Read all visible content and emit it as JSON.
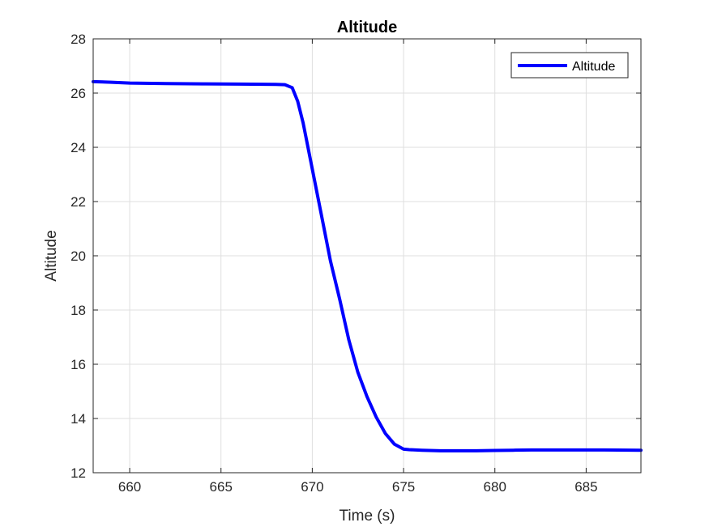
{
  "chart_data": {
    "type": "line",
    "title": "Altitude",
    "xlabel": "Time (s)",
    "ylabel": "Altitude",
    "xlim": [
      658,
      688
    ],
    "ylim": [
      12,
      28
    ],
    "xticks": [
      660,
      665,
      670,
      675,
      680,
      685
    ],
    "yticks": [
      12,
      14,
      16,
      18,
      20,
      22,
      24,
      26,
      28
    ],
    "grid": true,
    "legend": {
      "position": "top-right",
      "entries": [
        "Altitude"
      ]
    },
    "series": [
      {
        "name": "Altitude",
        "color": "#0000ff",
        "x": [
          658,
          659,
          660,
          662,
          664,
          666,
          668,
          668.5,
          668.9,
          669.2,
          669.5,
          670.0,
          670.5,
          671.0,
          671.5,
          672.0,
          672.5,
          673.0,
          673.5,
          674.0,
          674.5,
          675.0,
          675.3,
          676,
          677,
          678,
          679,
          680,
          681,
          682,
          684,
          686,
          688
        ],
        "y": [
          26.42,
          26.4,
          26.37,
          26.35,
          26.34,
          26.33,
          26.32,
          26.31,
          26.2,
          25.7,
          24.9,
          23.2,
          21.5,
          19.8,
          18.4,
          16.9,
          15.7,
          14.8,
          14.05,
          13.45,
          13.05,
          12.87,
          12.85,
          12.83,
          12.81,
          12.81,
          12.81,
          12.82,
          12.83,
          12.84,
          12.84,
          12.84,
          12.83
        ]
      }
    ]
  }
}
